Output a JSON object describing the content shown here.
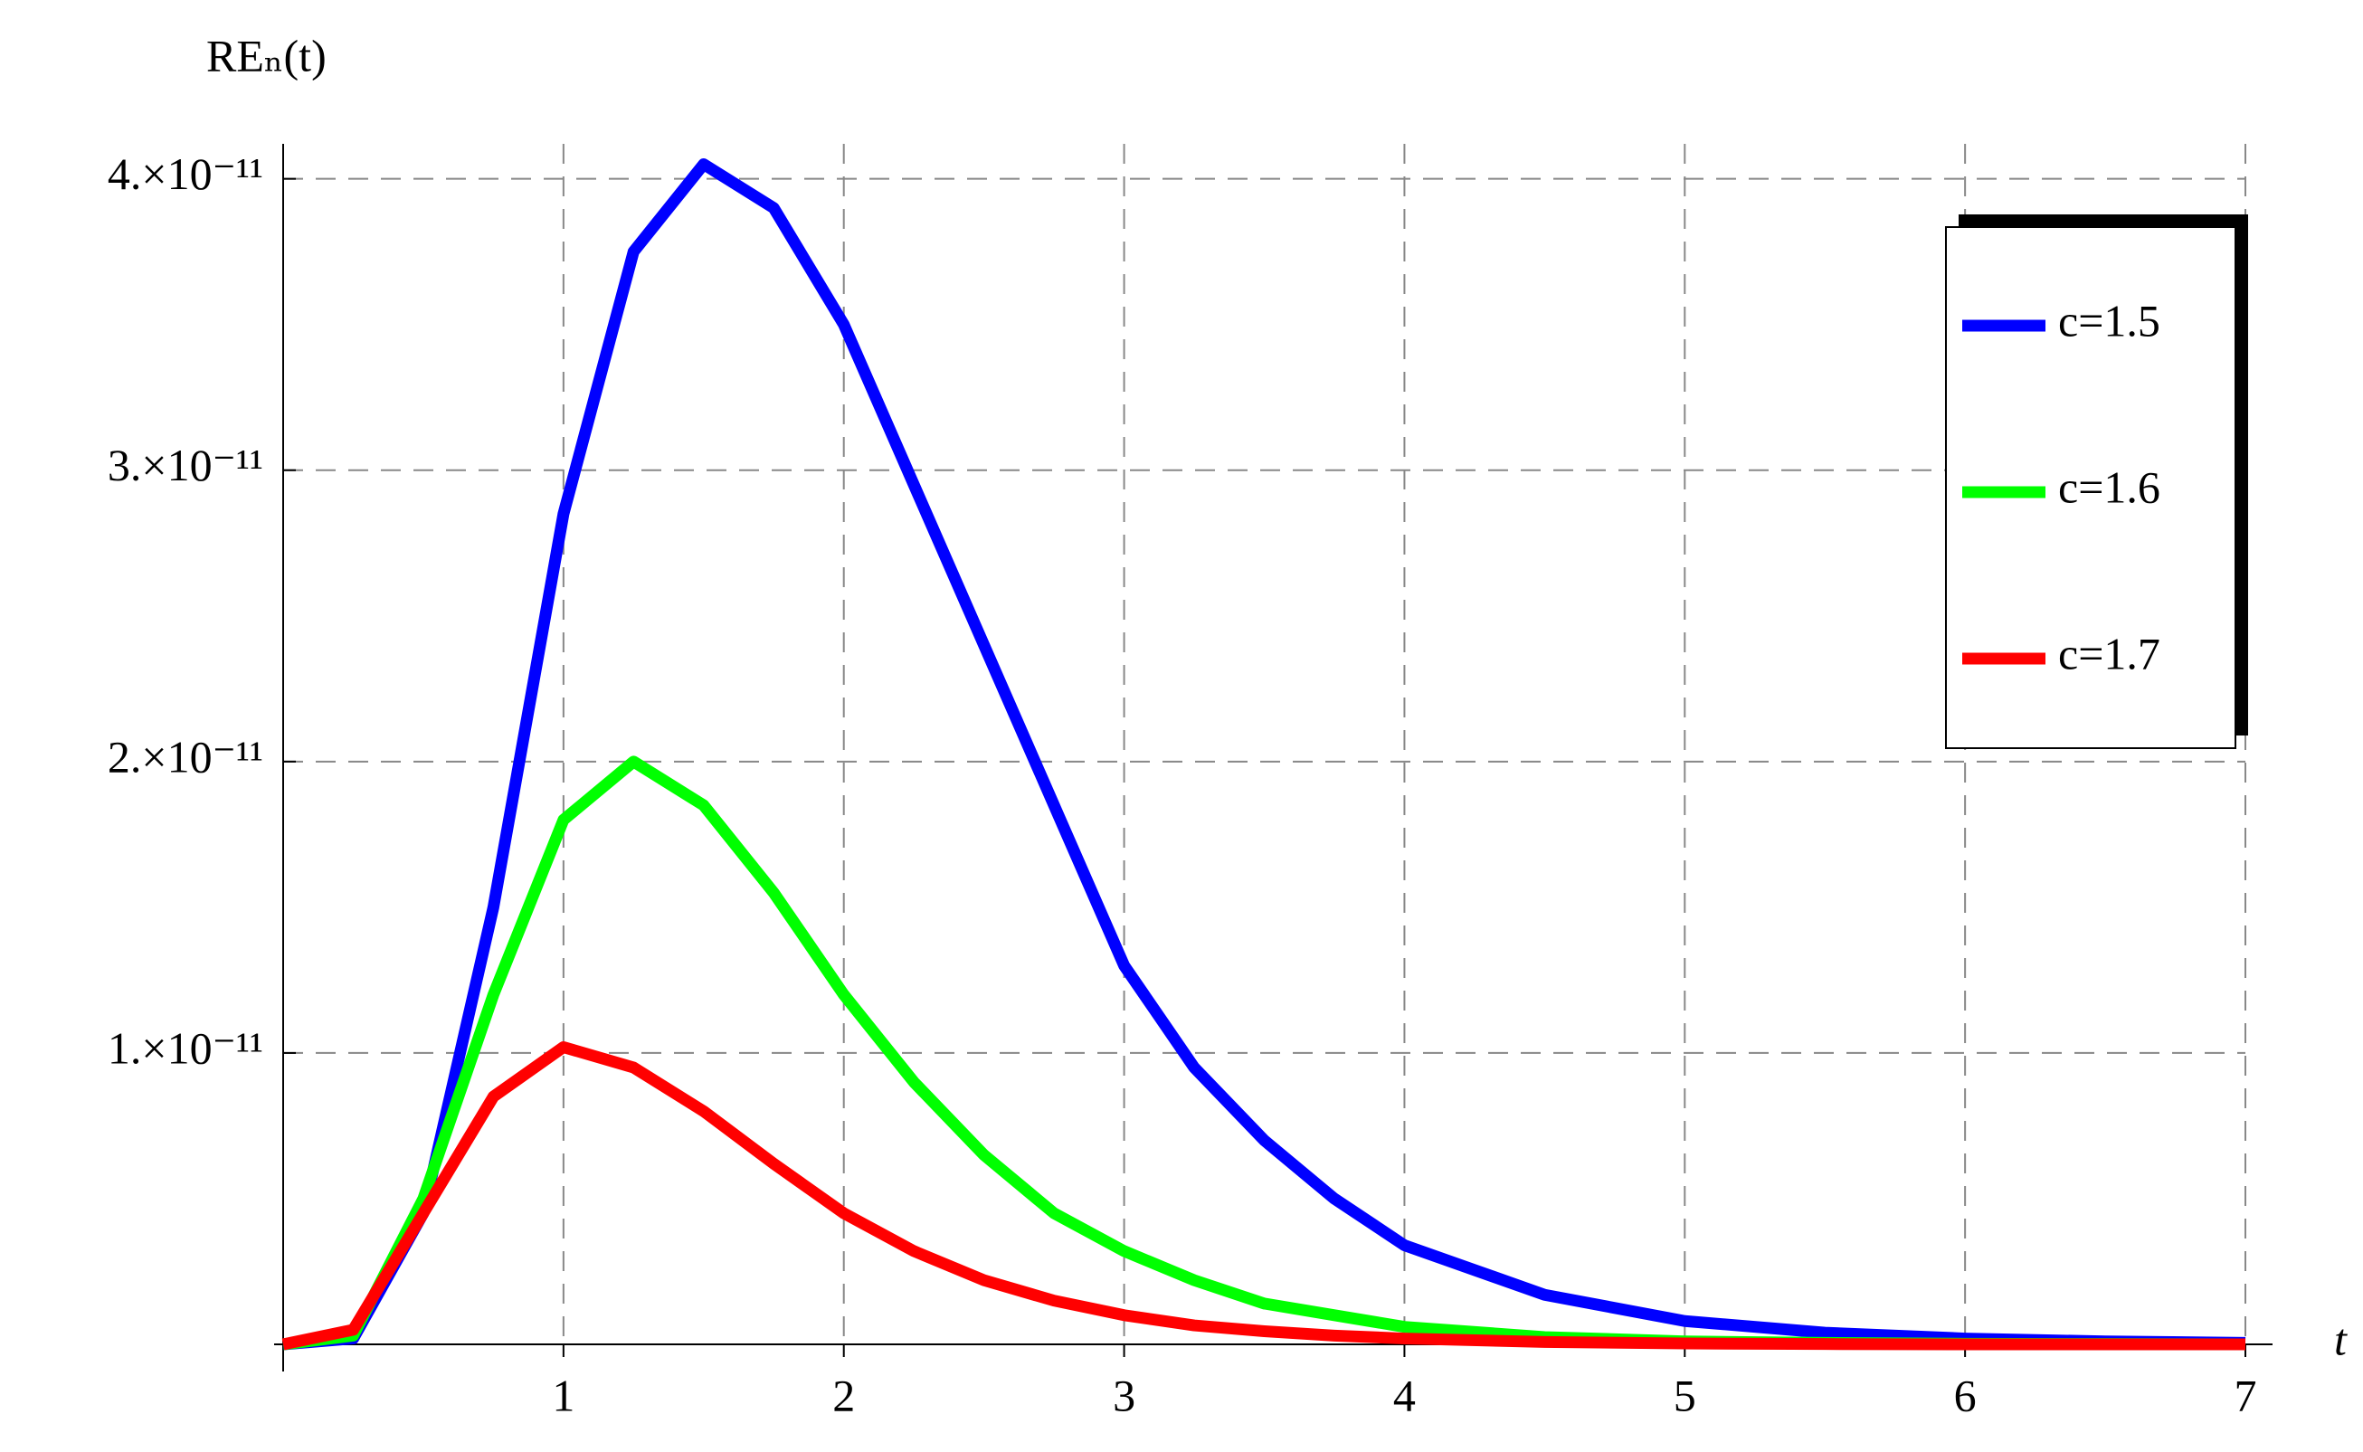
{
  "chart_data": {
    "type": "line",
    "y_label": "REₙ(t)",
    "x_label": "t",
    "x": [
      0,
      0.25,
      0.5,
      0.75,
      1,
      1.25,
      1.5,
      1.75,
      2,
      2.25,
      2.5,
      2.75,
      3,
      3.25,
      3.5,
      3.75,
      4,
      4.5,
      5,
      5.5,
      6,
      6.5,
      7
    ],
    "series": [
      {
        "name": "c=1.5",
        "color": "#0000ff",
        "values": [
          0,
          2e-13,
          4.5e-12,
          1.5e-11,
          2.85e-11,
          3.75e-11,
          4.05e-11,
          3.9e-11,
          3.5e-11,
          2.95e-11,
          2.4e-11,
          1.85e-11,
          1.3e-11,
          9.5e-12,
          7e-12,
          5e-12,
          3.4e-12,
          1.7e-12,
          8e-13,
          4e-13,
          2e-13,
          1e-13,
          5e-14
        ]
      },
      {
        "name": "c=1.6",
        "color": "#00ff00",
        "values": [
          0,
          3e-13,
          5e-12,
          1.2e-11,
          1.8e-11,
          2e-11,
          1.85e-11,
          1.55e-11,
          1.2e-11,
          9e-12,
          6.5e-12,
          4.5e-12,
          3.2e-12,
          2.2e-12,
          1.4e-12,
          1e-12,
          6e-13,
          2.5e-13,
          1e-13,
          5e-14,
          2e-14,
          1e-14,
          0
        ]
      },
      {
        "name": "c=1.7",
        "color": "#ff0000",
        "values": [
          0,
          5e-13,
          4.5e-12,
          8.5e-12,
          1.02e-11,
          9.5e-12,
          8e-12,
          6.2e-12,
          4.5e-12,
          3.2e-12,
          2.2e-12,
          1.5e-12,
          1e-12,
          6.5e-13,
          4.5e-13,
          3e-13,
          2e-13,
          8e-14,
          3e-14,
          1e-14,
          0,
          0,
          0
        ]
      }
    ],
    "xlim": [
      0,
      7
    ],
    "ylim": [
      0,
      4.12e-11
    ],
    "xticks": [
      1,
      2,
      3,
      4,
      5,
      6,
      7
    ],
    "yticks": [
      {
        "value": 1e-11,
        "label": "1.×10⁻¹¹"
      },
      {
        "value": 2e-11,
        "label": "2.×10⁻¹¹"
      },
      {
        "value": 3e-11,
        "label": "3.×10⁻¹¹"
      },
      {
        "value": 4e-11,
        "label": "4.×10⁻¹¹"
      }
    ],
    "grid": true,
    "legend": "top-right"
  }
}
